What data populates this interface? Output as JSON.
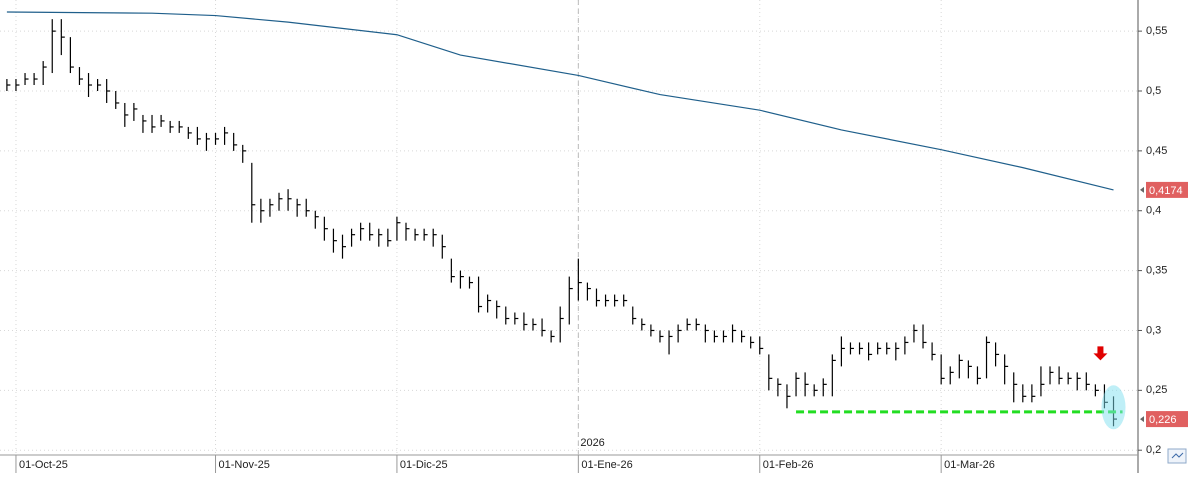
{
  "chart_data": {
    "type": "ohlc",
    "xlim": [
      -1.76,
      123.7
    ],
    "ylim": [
      0.196,
      0.576
    ],
    "xticks": [
      {
        "value": 0,
        "label": "01-Oct-25"
      },
      {
        "value": 22,
        "label": "01-Nov-25"
      },
      {
        "value": 42,
        "label": "01-Dic-25"
      },
      {
        "value": 62,
        "label": "01-Ene-26"
      },
      {
        "value": 82,
        "label": "01-Feb-26"
      },
      {
        "value": 102,
        "label": "01-Mar-26"
      }
    ],
    "yticks": [
      {
        "value": 0.2,
        "label": "0,2"
      },
      {
        "value": 0.25,
        "label": "0,25"
      },
      {
        "value": 0.3,
        "label": "0,3"
      },
      {
        "value": 0.35,
        "label": "0,35"
      },
      {
        "value": 0.4,
        "label": "0,4"
      },
      {
        "value": 0.45,
        "label": "0,45"
      },
      {
        "value": 0.5,
        "label": "0,5"
      },
      {
        "value": 0.55,
        "label": "0,55"
      }
    ],
    "grid": true,
    "year_marker": {
      "label": "2026",
      "x": 62
    },
    "bars": {
      "color": "#000000",
      "last_value_label": "0,226",
      "x": [
        -1,
        0,
        1,
        2,
        3,
        4,
        5,
        6,
        7,
        8,
        9,
        10,
        11,
        12,
        13,
        14,
        15,
        16,
        17,
        18,
        19,
        20,
        21,
        22,
        23,
        24,
        25,
        26,
        27,
        28,
        29,
        30,
        31,
        32,
        33,
        34,
        35,
        36,
        37,
        38,
        39,
        40,
        41,
        42,
        43,
        44,
        45,
        46,
        47,
        48,
        49,
        50,
        51,
        52,
        53,
        54,
        55,
        56,
        57,
        58,
        59,
        60,
        61,
        62,
        63,
        64,
        65,
        66,
        67,
        68,
        69,
        70,
        71,
        72,
        73,
        74,
        75,
        76,
        77,
        78,
        79,
        80,
        81,
        82,
        83,
        84,
        85,
        86,
        87,
        88,
        89,
        90,
        91,
        92,
        93,
        94,
        95,
        96,
        97,
        98,
        99,
        100,
        101,
        102,
        103,
        104,
        105,
        106,
        107,
        108,
        109,
        110,
        111,
        112,
        113,
        114,
        115,
        116,
        117,
        118,
        119,
        120,
        121
      ],
      "high": [
        0.51,
        0.51,
        0.515,
        0.515,
        0.525,
        0.56,
        0.56,
        0.545,
        0.52,
        0.515,
        0.51,
        0.51,
        0.5,
        0.49,
        0.49,
        0.48,
        0.48,
        0.48,
        0.475,
        0.475,
        0.47,
        0.47,
        0.465,
        0.465,
        0.47,
        0.465,
        0.455,
        0.44,
        0.41,
        0.41,
        0.415,
        0.418,
        0.41,
        0.41,
        0.4,
        0.395,
        0.385,
        0.38,
        0.385,
        0.39,
        0.39,
        0.385,
        0.385,
        0.395,
        0.39,
        0.385,
        0.385,
        0.385,
        0.38,
        0.36,
        0.35,
        0.345,
        0.345,
        0.33,
        0.325,
        0.32,
        0.315,
        0.315,
        0.31,
        0.31,
        0.3,
        0.32,
        0.345,
        0.36,
        0.34,
        0.335,
        0.33,
        0.33,
        0.33,
        0.32,
        0.31,
        0.305,
        0.3,
        0.3,
        0.305,
        0.31,
        0.31,
        0.305,
        0.3,
        0.3,
        0.305,
        0.3,
        0.295,
        0.295,
        0.28,
        0.26,
        0.255,
        0.265,
        0.265,
        0.255,
        0.26,
        0.28,
        0.295,
        0.29,
        0.29,
        0.29,
        0.29,
        0.29,
        0.29,
        0.295,
        0.305,
        0.305,
        0.29,
        0.28,
        0.27,
        0.28,
        0.275,
        0.27,
        0.295,
        0.29,
        0.28,
        0.265,
        0.255,
        0.255,
        0.27,
        0.27,
        0.27,
        0.265,
        0.265,
        0.265,
        0.255,
        0.255,
        0.245
      ],
      "low": [
        0.5,
        0.5,
        0.505,
        0.505,
        0.505,
        0.515,
        0.53,
        0.515,
        0.505,
        0.495,
        0.5,
        0.49,
        0.485,
        0.47,
        0.475,
        0.465,
        0.465,
        0.47,
        0.465,
        0.465,
        0.46,
        0.455,
        0.45,
        0.455,
        0.455,
        0.45,
        0.44,
        0.39,
        0.39,
        0.395,
        0.4,
        0.4,
        0.395,
        0.395,
        0.385,
        0.375,
        0.365,
        0.36,
        0.37,
        0.375,
        0.375,
        0.37,
        0.37,
        0.375,
        0.375,
        0.375,
        0.375,
        0.37,
        0.36,
        0.34,
        0.335,
        0.335,
        0.315,
        0.315,
        0.31,
        0.305,
        0.305,
        0.3,
        0.3,
        0.295,
        0.29,
        0.29,
        0.305,
        0.325,
        0.325,
        0.32,
        0.32,
        0.32,
        0.32,
        0.305,
        0.3,
        0.295,
        0.29,
        0.28,
        0.29,
        0.3,
        0.3,
        0.29,
        0.29,
        0.29,
        0.29,
        0.29,
        0.285,
        0.28,
        0.25,
        0.245,
        0.235,
        0.245,
        0.245,
        0.245,
        0.245,
        0.245,
        0.27,
        0.28,
        0.28,
        0.275,
        0.28,
        0.28,
        0.275,
        0.28,
        0.29,
        0.285,
        0.275,
        0.255,
        0.255,
        0.26,
        0.26,
        0.255,
        0.26,
        0.27,
        0.255,
        0.24,
        0.24,
        0.24,
        0.245,
        0.255,
        0.255,
        0.255,
        0.25,
        0.25,
        0.245,
        0.235,
        0.22
      ],
      "close": [
        0.505,
        0.505,
        0.51,
        0.51,
        0.52,
        0.55,
        0.545,
        0.52,
        0.51,
        0.505,
        0.505,
        0.5,
        0.49,
        0.48,
        0.485,
        0.475,
        0.47,
        0.475,
        0.47,
        0.47,
        0.465,
        0.46,
        0.46,
        0.46,
        0.465,
        0.455,
        0.45,
        0.405,
        0.4,
        0.405,
        0.41,
        0.41,
        0.405,
        0.4,
        0.395,
        0.385,
        0.375,
        0.37,
        0.38,
        0.385,
        0.38,
        0.38,
        0.375,
        0.39,
        0.385,
        0.38,
        0.38,
        0.38,
        0.37,
        0.345,
        0.345,
        0.34,
        0.32,
        0.325,
        0.32,
        0.31,
        0.31,
        0.305,
        0.305,
        0.3,
        0.295,
        0.31,
        0.335,
        0.34,
        0.335,
        0.325,
        0.325,
        0.325,
        0.325,
        0.31,
        0.305,
        0.3,
        0.295,
        0.295,
        0.3,
        0.305,
        0.305,
        0.3,
        0.295,
        0.295,
        0.3,
        0.295,
        0.29,
        0.285,
        0.26,
        0.255,
        0.245,
        0.26,
        0.255,
        0.25,
        0.255,
        0.275,
        0.285,
        0.285,
        0.285,
        0.28,
        0.285,
        0.285,
        0.285,
        0.29,
        0.3,
        0.29,
        0.28,
        0.26,
        0.265,
        0.275,
        0.27,
        0.26,
        0.29,
        0.28,
        0.27,
        0.255,
        0.245,
        0.245,
        0.255,
        0.265,
        0.26,
        0.26,
        0.26,
        0.255,
        0.25,
        0.24,
        0.226
      ]
    },
    "moving_average": {
      "color": "#1f5f8b",
      "last_value_label": "0,4174",
      "x": [
        -1,
        15,
        22,
        30,
        42,
        49,
        62,
        71,
        82,
        91,
        102,
        111,
        121
      ],
      "values": [
        0.566,
        0.565,
        0.563,
        0.5575,
        0.547,
        0.53,
        0.513,
        0.497,
        0.484,
        0.4675,
        0.451,
        0.436,
        0.4174
      ]
    },
    "support_line": {
      "y": 0.232,
      "x": [
        86,
        122
      ],
      "color": "#22dd22"
    }
  }
}
